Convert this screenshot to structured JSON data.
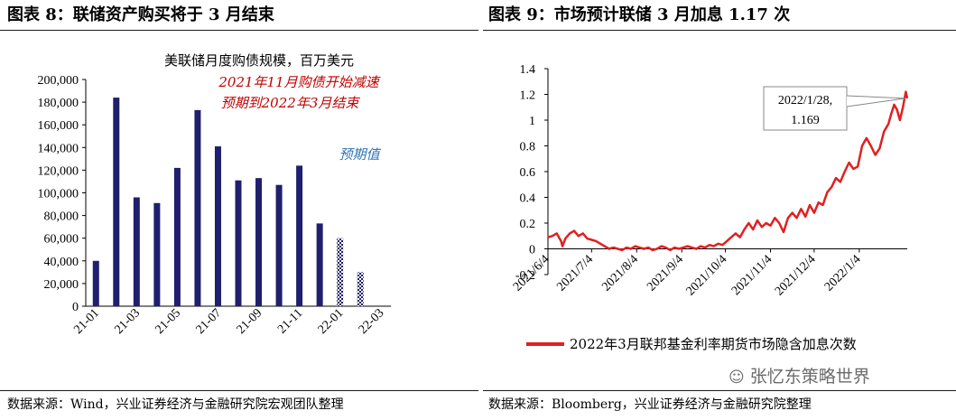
{
  "left": {
    "title": "图表 8：联储资产购买将于 3 月结束",
    "source": "数据来源：Wind，兴业证券经济与金融研究院宏观团队整理",
    "chart_data": {
      "type": "bar",
      "title": "美联储月度购债规模，百万美元",
      "categories": [
        "21-01",
        "21-02",
        "21-03",
        "21-04",
        "21-05",
        "21-06",
        "21-07",
        "21-08",
        "21-09",
        "21-10",
        "21-11",
        "21-12",
        "22-01",
        "22-02",
        "22-03"
      ],
      "x_tick_labels": [
        "21-01",
        "21-03",
        "21-05",
        "21-07",
        "21-09",
        "21-11",
        "22-01",
        "22-03"
      ],
      "series": [
        {
          "values": [
            40000,
            184000,
            96000,
            91000,
            122000,
            173000,
            141000,
            111000,
            113000,
            107000,
            124000,
            73000,
            null,
            null,
            null
          ],
          "color": "#1f1f6e"
        },
        {
          "name": "预期值",
          "values": [
            null,
            null,
            null,
            null,
            null,
            null,
            null,
            null,
            null,
            null,
            null,
            null,
            60000,
            30000,
            null
          ],
          "color": "#1f1f6e",
          "pattern": "checker"
        }
      ],
      "ylim": [
        0,
        200000
      ],
      "yticks": [
        0,
        20000,
        40000,
        60000,
        80000,
        100000,
        120000,
        140000,
        160000,
        180000,
        200000
      ],
      "ytick_labels": [
        "0",
        "20,000",
        "40,000",
        "60,000",
        "80,000",
        "100,000",
        "120,000",
        "140,000",
        "160,000",
        "180,000",
        "200,000"
      ],
      "annotations": {
        "red_line1": "2021年11月购债开始减速",
        "red_line2": "预期到2022年3月结束",
        "blue": "预期值"
      },
      "annotation_colors": {
        "red": "#c00000",
        "blue": "#2e75b6"
      }
    }
  },
  "right": {
    "title": "图表 9：市场预计联储 3 月加息 1.17 次",
    "source": "数据来源：Bloomberg，兴业证券经济与金融研究院整理",
    "chart_data": {
      "type": "line",
      "x_tick_labels": [
        "2021/6/4",
        "2021/7/4",
        "2021/8/4",
        "2021/9/4",
        "2021/10/4",
        "2021/11/4",
        "2021/12/4",
        "2022/1/4"
      ],
      "ylim": [
        -0.2,
        1.4
      ],
      "yticks": [
        -0.2,
        0,
        0.2,
        0.4,
        0.6,
        0.8,
        1,
        1.2,
        1.4
      ],
      "ytick_labels": [
        "-0.2",
        "0",
        "0.2",
        "0.4",
        "0.6",
        "0.8",
        "1",
        "1.2",
        "1.4"
      ],
      "series": [
        {
          "name": "2022年3月联邦基金利率期货市场隐含加息次数",
          "color": "#e02020",
          "points": [
            [
              0,
              0.09
            ],
            [
              3,
              0.1
            ],
            [
              6,
              0.12
            ],
            [
              9,
              0.06
            ],
            [
              10,
              0.02
            ],
            [
              12,
              0.08
            ],
            [
              15,
              0.12
            ],
            [
              18,
              0.14
            ],
            [
              21,
              0.1
            ],
            [
              24,
              0.12
            ],
            [
              27,
              0.08
            ],
            [
              30,
              0.07
            ],
            [
              33,
              0.06
            ],
            [
              36,
              0.04
            ],
            [
              39,
              0.02
            ],
            [
              42,
              0.0
            ],
            [
              45,
              0.01
            ],
            [
              48,
              0.0
            ],
            [
              51,
              -0.01
            ],
            [
              54,
              0.01
            ],
            [
              57,
              0.0
            ],
            [
              60,
              0.02
            ],
            [
              63,
              0.01
            ],
            [
              66,
              0.0
            ],
            [
              69,
              0.01
            ],
            [
              72,
              -0.01
            ],
            [
              75,
              0.0
            ],
            [
              78,
              0.02
            ],
            [
              81,
              0.01
            ],
            [
              84,
              -0.01
            ],
            [
              87,
              0.01
            ],
            [
              90,
              0.0
            ],
            [
              93,
              0.01
            ],
            [
              96,
              0.02
            ],
            [
              99,
              0.01
            ],
            [
              102,
              0.0
            ],
            [
              105,
              0.02
            ],
            [
              108,
              0.01
            ],
            [
              111,
              0.03
            ],
            [
              114,
              0.02
            ],
            [
              117,
              0.04
            ],
            [
              120,
              0.03
            ],
            [
              123,
              0.06
            ],
            [
              126,
              0.09
            ],
            [
              129,
              0.12
            ],
            [
              132,
              0.09
            ],
            [
              135,
              0.15
            ],
            [
              138,
              0.2
            ],
            [
              141,
              0.15
            ],
            [
              144,
              0.22
            ],
            [
              147,
              0.17
            ],
            [
              150,
              0.2
            ],
            [
              153,
              0.18
            ],
            [
              156,
              0.24
            ],
            [
              159,
              0.2
            ],
            [
              162,
              0.13
            ],
            [
              165,
              0.24
            ],
            [
              168,
              0.28
            ],
            [
              171,
              0.24
            ],
            [
              174,
              0.31
            ],
            [
              177,
              0.25
            ],
            [
              180,
              0.34
            ],
            [
              183,
              0.28
            ],
            [
              186,
              0.36
            ],
            [
              189,
              0.34
            ],
            [
              192,
              0.44
            ],
            [
              195,
              0.48
            ],
            [
              198,
              0.55
            ],
            [
              201,
              0.52
            ],
            [
              204,
              0.6
            ],
            [
              207,
              0.67
            ],
            [
              210,
              0.62
            ],
            [
              213,
              0.64
            ],
            [
              216,
              0.8
            ],
            [
              219,
              0.86
            ],
            [
              222,
              0.8
            ],
            [
              225,
              0.73
            ],
            [
              228,
              0.78
            ],
            [
              231,
              0.91
            ],
            [
              234,
              0.97
            ],
            [
              236,
              1.05
            ],
            [
              238,
              1.12
            ],
            [
              240,
              1.08
            ],
            [
              242,
              1.0
            ],
            [
              244,
              1.1
            ],
            [
              246,
              1.22
            ],
            [
              247,
              1.169
            ]
          ]
        }
      ],
      "annotation": {
        "line1": "2022/1/28,",
        "line2": "1.169"
      }
    }
  },
  "watermark": "张忆东策略世界"
}
